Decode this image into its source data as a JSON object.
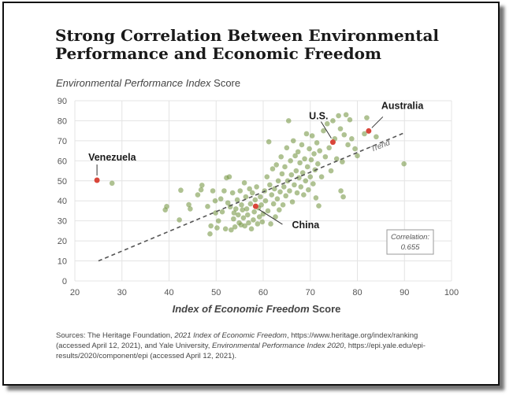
{
  "title": "Strong Correlation Between Environmental Performance and Economic Freedom",
  "ylabel_italic": "Environmental Performance Index",
  "ylabel_rest": " Score",
  "xlabel_italic": "Index of Economic Freedom",
  "xlabel_rest": " Score",
  "trend_label": "Trend",
  "correlation_label": "Correlation:",
  "correlation_value": "0.655",
  "sources": {
    "p1": "Sources: The Heritage Foundation, ",
    "p2": "2021 Index of Economic Freedom",
    "p3": ", https://www.heritage.org/index/ranking (accessed April 12, 2021), and Yale University, ",
    "p4": "Environmental Performance Index 2020",
    "p5": ", https://epi.yale.edu/epi-results/2020/component/epi (accessed April 12, 2021)."
  },
  "colors": {
    "points": "#7a9a4a",
    "highlight": "#d9463a",
    "trend": "#555555",
    "grid": "#e4e4e4"
  },
  "chart_data": {
    "type": "scatter",
    "xlabel": "Index of Economic Freedom Score",
    "ylabel": "Environmental Performance Index Score",
    "xlim": [
      20,
      100
    ],
    "ylim": [
      0,
      90
    ],
    "x_ticks": [
      "20",
      "30",
      "40",
      "50",
      "60",
      "70",
      "80",
      "90",
      "100"
    ],
    "y_ticks": [
      "0",
      "10",
      "20",
      "30",
      "40",
      "50",
      "60",
      "70",
      "80",
      "90"
    ],
    "grid": true,
    "trend_line": {
      "x": [
        25,
        90
      ],
      "y": [
        10,
        74
      ]
    },
    "correlation": 0.655,
    "highlighted": [
      {
        "name": "Venezuela",
        "x": 24.7,
        "y": 50.3
      },
      {
        "name": "U.S.",
        "x": 74.8,
        "y": 69.3
      },
      {
        "name": "Australia",
        "x": 82.4,
        "y": 74.9
      },
      {
        "name": "China",
        "x": 58.4,
        "y": 37.3
      }
    ],
    "points": [
      [
        27.9,
        48.8
      ],
      [
        39.2,
        35.5
      ],
      [
        39.5,
        37.2
      ],
      [
        42.2,
        30.5
      ],
      [
        42.5,
        45.3
      ],
      [
        44.2,
        38.1
      ],
      [
        44.5,
        36.0
      ],
      [
        46.1,
        43.0
      ],
      [
        46.8,
        45.5
      ],
      [
        47.0,
        47.8
      ],
      [
        48.2,
        37.2
      ],
      [
        48.7,
        23.5
      ],
      [
        48.9,
        27.5
      ],
      [
        49.3,
        45.0
      ],
      [
        49.8,
        40.0
      ],
      [
        49.9,
        34.0
      ],
      [
        50.2,
        26.5
      ],
      [
        50.5,
        30.0
      ],
      [
        51.0,
        41.0
      ],
      [
        51.3,
        34.5
      ],
      [
        51.7,
        45.0
      ],
      [
        52.0,
        26.0
      ],
      [
        52.2,
        51.5
      ],
      [
        52.5,
        39.0
      ],
      [
        52.8,
        52.0
      ],
      [
        53.0,
        37.0
      ],
      [
        53.2,
        25.5
      ],
      [
        53.5,
        44.0
      ],
      [
        53.7,
        31.0
      ],
      [
        53.8,
        34.0
      ],
      [
        54.0,
        27.0
      ],
      [
        54.2,
        36.0
      ],
      [
        54.5,
        40.5
      ],
      [
        54.7,
        33.0
      ],
      [
        54.9,
        29.0
      ],
      [
        55.1,
        45.0
      ],
      [
        55.3,
        28.0
      ],
      [
        55.4,
        38.0
      ],
      [
        55.6,
        35.5
      ],
      [
        55.8,
        31.5
      ],
      [
        56.0,
        49.0
      ],
      [
        56.1,
        27.5
      ],
      [
        56.3,
        42.0
      ],
      [
        56.5,
        36.0
      ],
      [
        56.7,
        33.0
      ],
      [
        56.9,
        29.0
      ],
      [
        57.1,
        46.0
      ],
      [
        57.3,
        38.5
      ],
      [
        57.5,
        26.0
      ],
      [
        57.7,
        44.0
      ],
      [
        57.9,
        30.5
      ],
      [
        58.1,
        34.5
      ],
      [
        58.3,
        40.5
      ],
      [
        58.6,
        47.0
      ],
      [
        58.8,
        28.5
      ],
      [
        59.0,
        36.5
      ],
      [
        59.2,
        32.0
      ],
      [
        59.4,
        42.0
      ],
      [
        59.6,
        38.0
      ],
      [
        59.8,
        29.5
      ],
      [
        60.0,
        33.5
      ],
      [
        60.3,
        45.0
      ],
      [
        60.5,
        40.0
      ],
      [
        60.8,
        52.0
      ],
      [
        61.0,
        35.0
      ],
      [
        61.2,
        69.5
      ],
      [
        61.4,
        48.0
      ],
      [
        61.6,
        28.5
      ],
      [
        61.8,
        43.0
      ],
      [
        62.0,
        56.0
      ],
      [
        62.2,
        38.5
      ],
      [
        62.4,
        46.0
      ],
      [
        62.6,
        32.0
      ],
      [
        62.8,
        58.0
      ],
      [
        63.0,
        41.0
      ],
      [
        63.2,
        50.0
      ],
      [
        63.4,
        35.5
      ],
      [
        63.6,
        44.5
      ],
      [
        63.8,
        62.0
      ],
      [
        64.0,
        53.5
      ],
      [
        64.2,
        38.0
      ],
      [
        64.4,
        47.0
      ],
      [
        64.6,
        57.0
      ],
      [
        64.8,
        42.5
      ],
      [
        65.0,
        66.5
      ],
      [
        65.2,
        50.0
      ],
      [
        65.4,
        80.0
      ],
      [
        65.6,
        45.0
      ],
      [
        65.8,
        60.0
      ],
      [
        66.0,
        53.0
      ],
      [
        66.2,
        39.5
      ],
      [
        66.4,
        70.0
      ],
      [
        66.6,
        48.0
      ],
      [
        66.8,
        62.5
      ],
      [
        67.0,
        55.0
      ],
      [
        67.2,
        44.0
      ],
      [
        67.4,
        64.5
      ],
      [
        67.6,
        51.5
      ],
      [
        67.8,
        59.0
      ],
      [
        68.0,
        47.0
      ],
      [
        68.2,
        68.0
      ],
      [
        68.4,
        54.0
      ],
      [
        68.6,
        43.0
      ],
      [
        68.8,
        61.0
      ],
      [
        69.0,
        50.0
      ],
      [
        69.2,
        73.5
      ],
      [
        69.4,
        57.0
      ],
      [
        69.6,
        45.5
      ],
      [
        69.8,
        66.0
      ],
      [
        70.0,
        52.0
      ],
      [
        70.2,
        60.5
      ],
      [
        70.4,
        72.5
      ],
      [
        70.6,
        48.5
      ],
      [
        70.8,
        63.5
      ],
      [
        71.0,
        55.5
      ],
      [
        71.2,
        41.5
      ],
      [
        71.4,
        69.0
      ],
      [
        71.6,
        58.5
      ],
      [
        71.8,
        37.5
      ],
      [
        72.0,
        65.0
      ],
      [
        72.4,
        52.0
      ],
      [
        72.8,
        75.0
      ],
      [
        73.2,
        62.0
      ],
      [
        73.6,
        78.5
      ],
      [
        74.0,
        66.5
      ],
      [
        74.4,
        55.0
      ],
      [
        74.8,
        80.0
      ],
      [
        75.2,
        71.0
      ],
      [
        75.6,
        61.0
      ],
      [
        76.0,
        82.5
      ],
      [
        76.4,
        76.0
      ],
      [
        76.8,
        59.5
      ],
      [
        77.2,
        73.0
      ],
      [
        77.6,
        83.0
      ],
      [
        78.0,
        68.0
      ],
      [
        78.4,
        80.5
      ],
      [
        78.8,
        71.0
      ],
      [
        77.0,
        42.0
      ],
      [
        76.5,
        45.0
      ],
      [
        79.5,
        66.0
      ],
      [
        80.0,
        62.5
      ],
      [
        81.5,
        73.5
      ],
      [
        82.0,
        81.5
      ],
      [
        84.0,
        72.0
      ],
      [
        89.9,
        58.5
      ]
    ]
  }
}
